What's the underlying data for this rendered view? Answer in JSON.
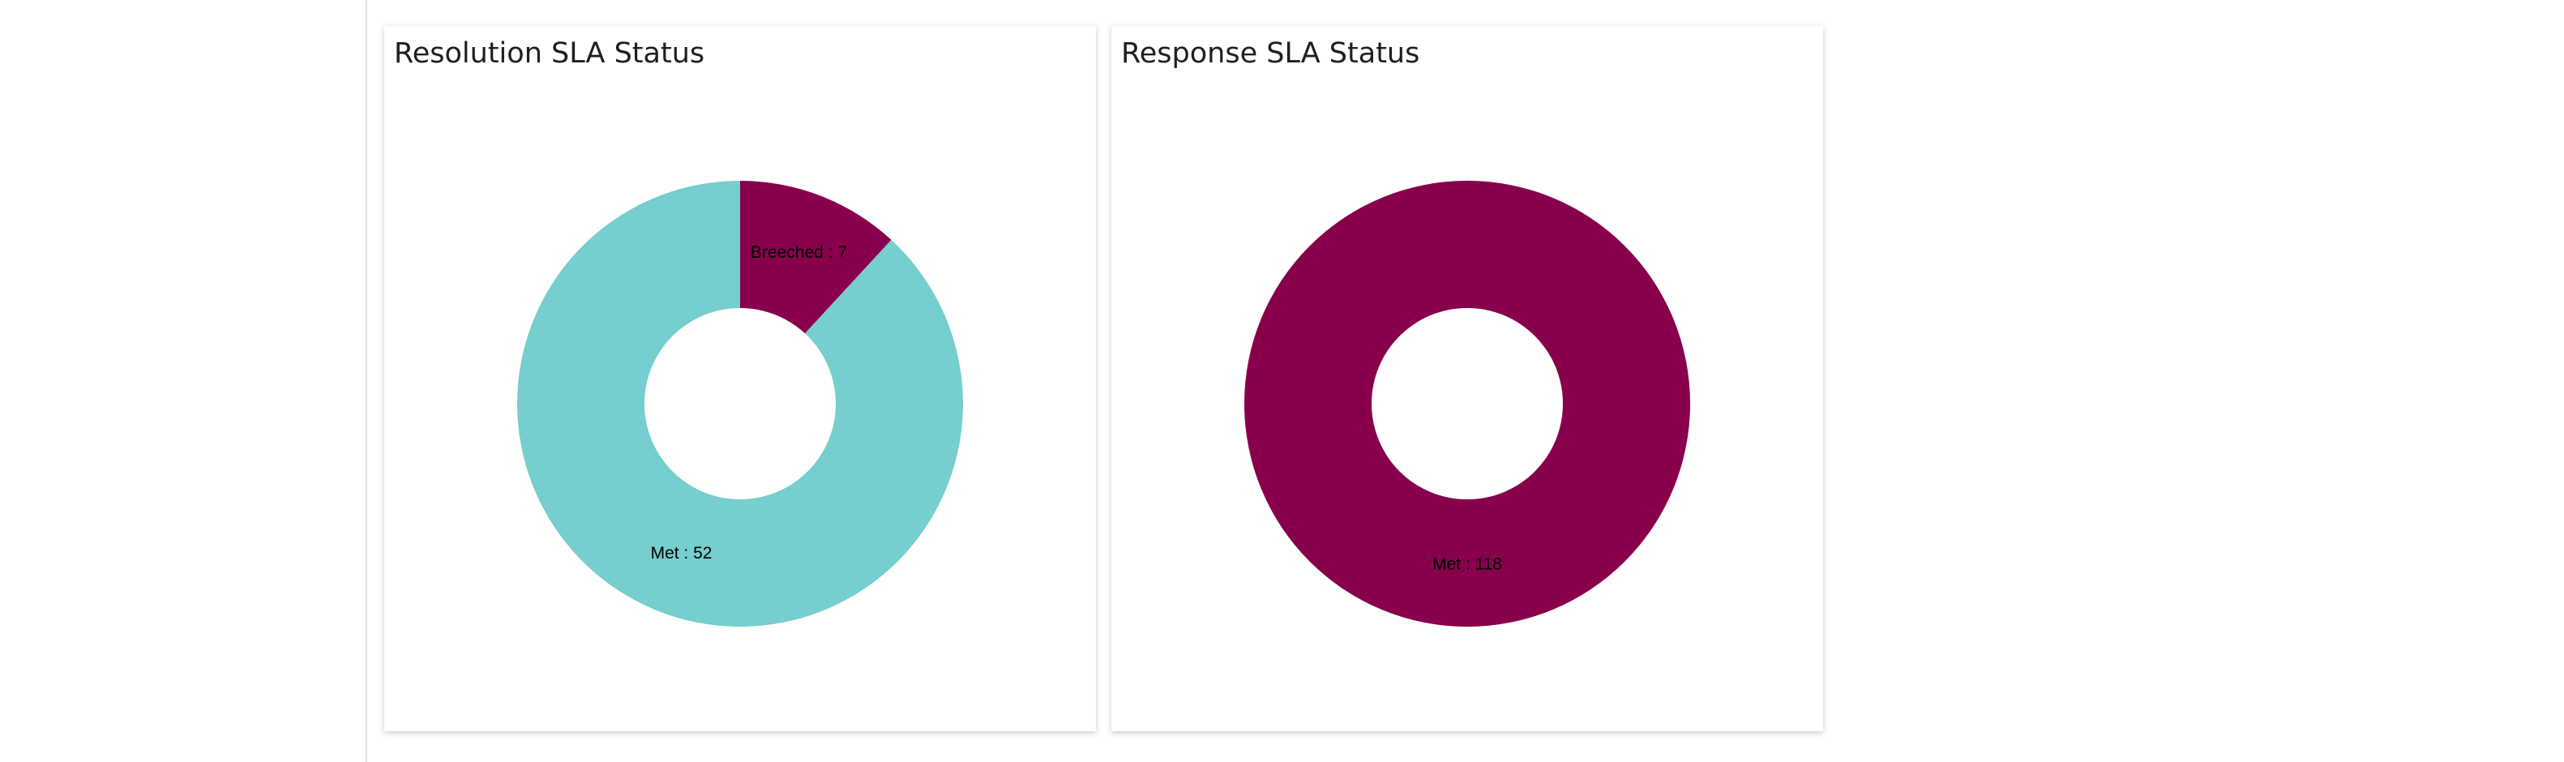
{
  "chart_data": [
    {
      "type": "pie",
      "title": "Resolution SLA Status",
      "categories": [
        "Breeched",
        "Met"
      ],
      "values": [
        7,
        52
      ],
      "labels": [
        "Breeched : 7",
        "Met : 52"
      ],
      "colors": [
        "#88004C",
        "#76CECE"
      ],
      "donut": true,
      "legend": "none"
    },
    {
      "type": "pie",
      "title": "Response SLA Status",
      "categories": [
        "Met"
      ],
      "values": [
        118
      ],
      "labels": [
        "Met : 118"
      ],
      "colors": [
        "#88004C"
      ],
      "donut": true,
      "legend": "none"
    }
  ]
}
